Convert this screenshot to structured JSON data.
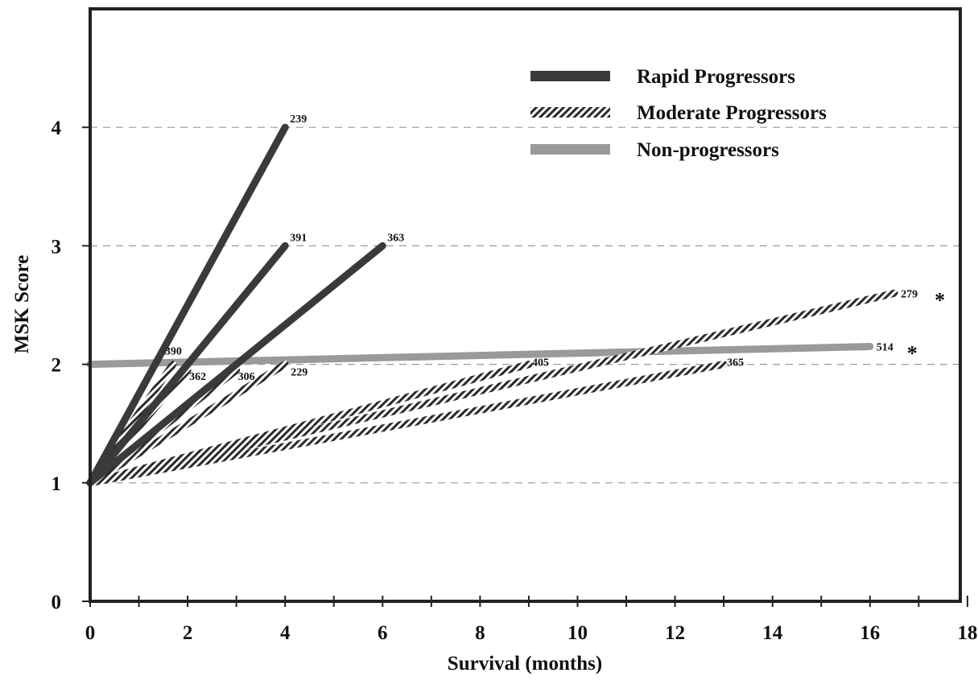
{
  "chart_data": {
    "type": "line",
    "xlabel": "Survival (months)",
    "ylabel": "MSK Score",
    "xlim": [
      0,
      18
    ],
    "ylim": [
      0,
      5
    ],
    "x_ticks": [
      0,
      2,
      4,
      6,
      8,
      10,
      12,
      14,
      16,
      18
    ],
    "y_ticks": [
      0,
      1,
      2,
      3,
      4
    ],
    "x_minor_step": 1,
    "grid": "dashed horizontal at y = 1, 2, 3, 4",
    "legend": {
      "placement": "top-right",
      "entries": [
        {
          "label": "Rapid Progressors",
          "style": "solid-dark",
          "color": "#3a3a3a"
        },
        {
          "label": "Moderate Progressors",
          "style": "hatched",
          "color": "#2a2a2a"
        },
        {
          "label": "Non-progressors",
          "style": "solid-light",
          "color": "#9a9a9a"
        }
      ]
    },
    "series": [
      {
        "group": "Rapid Progressors",
        "label": "239",
        "x": [
          0,
          4
        ],
        "y": [
          1,
          4
        ]
      },
      {
        "group": "Rapid Progressors",
        "label": "391",
        "x": [
          0,
          4
        ],
        "y": [
          1,
          3
        ]
      },
      {
        "group": "Rapid Progressors",
        "label": "363",
        "x": [
          0,
          6
        ],
        "y": [
          1,
          3
        ]
      },
      {
        "group": "Moderate Progressors",
        "label": "390",
        "x": [
          0,
          1.7
        ],
        "y": [
          1,
          2
        ]
      },
      {
        "group": "Moderate Progressors",
        "label": "362",
        "x": [
          0,
          2
        ],
        "y": [
          1,
          1.95
        ]
      },
      {
        "group": "Moderate Progressors",
        "label": "306",
        "x": [
          0,
          3
        ],
        "y": [
          1,
          1.95
        ]
      },
      {
        "group": "Moderate Progressors",
        "label": "229",
        "x": [
          0,
          4
        ],
        "y": [
          1,
          2
        ]
      },
      {
        "group": "Moderate Progressors",
        "label": "405",
        "x": [
          0,
          9
        ],
        "y": [
          1,
          2
        ]
      },
      {
        "group": "Moderate Progressors",
        "label": "365",
        "x": [
          0,
          13
        ],
        "y": [
          1,
          2
        ]
      },
      {
        "group": "Moderate Progressors",
        "label": "279",
        "x": [
          0,
          16.5
        ],
        "y": [
          1,
          2.6
        ],
        "annotation": "*"
      },
      {
        "group": "Non-progressors",
        "label": "514",
        "x": [
          0,
          16
        ],
        "y": [
          2,
          2.15
        ],
        "annotation": "*"
      }
    ]
  }
}
